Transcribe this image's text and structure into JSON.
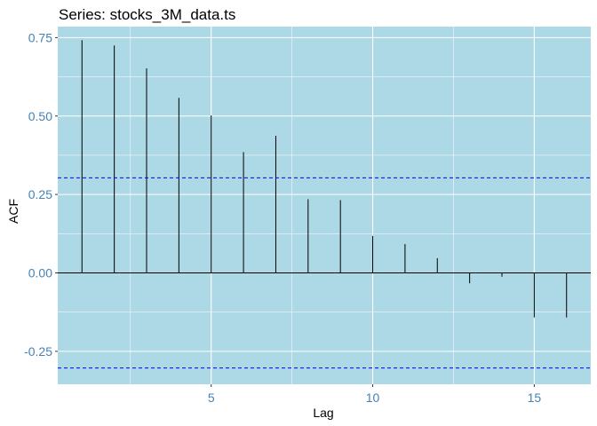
{
  "chart_data": {
    "type": "bar",
    "title": "Series: stocks_3M_data.ts",
    "xlabel": "Lag",
    "ylabel": "ACF",
    "x": [
      1,
      2,
      3,
      4,
      5,
      6,
      7,
      8,
      9,
      10,
      11,
      12,
      13,
      14,
      15,
      16
    ],
    "values": [
      0.742,
      0.725,
      0.652,
      0.558,
      0.502,
      0.385,
      0.437,
      0.235,
      0.232,
      0.118,
      0.092,
      0.047,
      -0.033,
      -0.012,
      -0.142,
      -0.142
    ],
    "xlim": [
      0.25,
      16.75
    ],
    "ylim": [
      -0.355,
      0.785
    ],
    "xticks": [
      5,
      10,
      15
    ],
    "yticks": [
      -0.25,
      0.0,
      0.25,
      0.5,
      0.75
    ],
    "yticks_labels": [
      "-0.25",
      "0.00",
      "0.25",
      "0.50",
      "0.75"
    ],
    "confidence_bounds": [
      0.303,
      -0.303
    ],
    "grid": true,
    "colors": {
      "panel_background": "#add8e6",
      "grid": "#ffffff",
      "bars": "#000000",
      "confidence_line": "#0000ff",
      "tick_labels": "#4682b4"
    }
  }
}
